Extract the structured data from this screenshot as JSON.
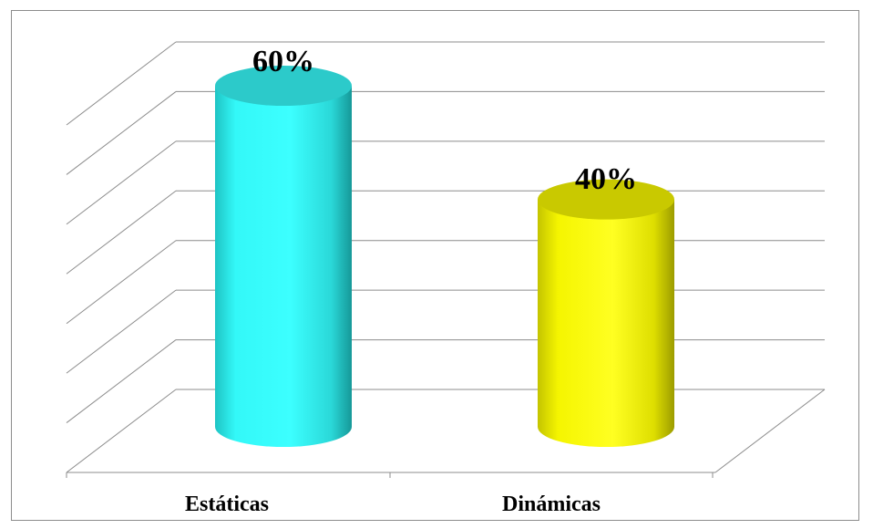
{
  "chart_data": {
    "type": "bar",
    "style": "3d-cylinder",
    "title": "",
    "xlabel": "",
    "ylabel": "",
    "ylim": [
      0,
      70
    ],
    "grid": true,
    "legend": "none",
    "categories": [
      "Estáticas",
      "Dinámicas"
    ],
    "values": [
      60,
      40
    ],
    "data_labels": [
      "60%",
      "40%"
    ],
    "colors": [
      "#33f2f2",
      "#f2f200"
    ]
  }
}
